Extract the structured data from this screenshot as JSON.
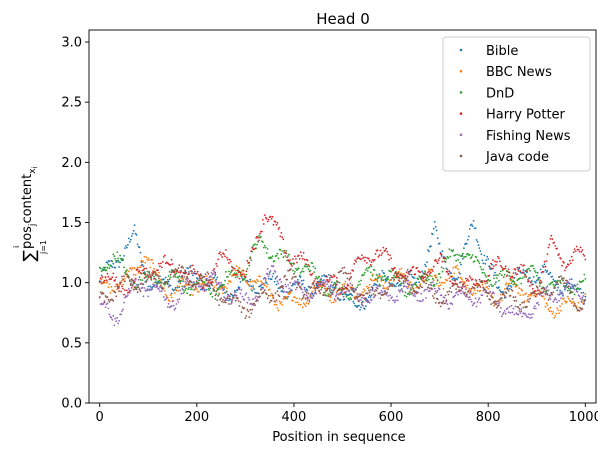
{
  "chart_data": {
    "type": "scatter",
    "title": "Head 0",
    "xlabel": "Position in sequence",
    "ylabel_tex": "sum_{j=1}^{i} pos_j content_{x_i}",
    "xlim": [
      -22,
      1022
    ],
    "ylim": [
      0.0,
      3.1
    ],
    "xticks": [
      0,
      200,
      400,
      600,
      800,
      1000
    ],
    "yticks": [
      0.0,
      0.5,
      1.0,
      1.5,
      2.0,
      2.5,
      3.0
    ],
    "xtick_labels": [
      "0",
      "200",
      "400",
      "600",
      "800",
      "1000"
    ],
    "ytick_labels": [
      "0.0",
      "0.5",
      "1.0",
      "1.5",
      "2.0",
      "2.5",
      "3.0"
    ],
    "grid": false,
    "legend_position": "top-right",
    "series": [
      {
        "name": "Bible",
        "color": "#1f77b4",
        "profile": [
          [
            0,
            1.0
          ],
          [
            30,
            1.12
          ],
          [
            60,
            1.3
          ],
          [
            72,
            1.38
          ],
          [
            100,
            1.05
          ],
          [
            150,
            0.98
          ],
          [
            200,
            1.02
          ],
          [
            300,
            0.95
          ],
          [
            400,
            1.0
          ],
          [
            500,
            0.92
          ],
          [
            530,
            0.8
          ],
          [
            560,
            1.0
          ],
          [
            650,
            0.98
          ],
          [
            690,
            1.45
          ],
          [
            700,
            1.3
          ],
          [
            740,
            1.0
          ],
          [
            770,
            1.52
          ],
          [
            790,
            1.2
          ],
          [
            820,
            1.0
          ],
          [
            880,
            1.05
          ],
          [
            950,
            1.0
          ],
          [
            1000,
            0.95
          ]
        ]
      },
      {
        "name": "BBC News",
        "color": "#ff7f0e",
        "profile": [
          [
            0,
            0.95
          ],
          [
            50,
            0.98
          ],
          [
            90,
            1.28
          ],
          [
            110,
            1.1
          ],
          [
            150,
            0.85
          ],
          [
            200,
            1.0
          ],
          [
            300,
            1.02
          ],
          [
            400,
            0.85
          ],
          [
            460,
            0.9
          ],
          [
            500,
            0.95
          ],
          [
            600,
            1.0
          ],
          [
            680,
            1.05
          ],
          [
            750,
            1.0
          ],
          [
            800,
            0.92
          ],
          [
            850,
            0.95
          ],
          [
            900,
            0.85
          ],
          [
            950,
            0.82
          ],
          [
            1000,
            0.88
          ]
        ]
      },
      {
        "name": "DnD",
        "color": "#2ca02c",
        "profile": [
          [
            0,
            1.1
          ],
          [
            30,
            1.2
          ],
          [
            80,
            1.05
          ],
          [
            150,
            0.98
          ],
          [
            200,
            1.02
          ],
          [
            250,
            0.95
          ],
          [
            300,
            1.1
          ],
          [
            335,
            1.38
          ],
          [
            380,
            1.2
          ],
          [
            430,
            1.05
          ],
          [
            500,
            0.95
          ],
          [
            560,
            1.05
          ],
          [
            620,
            1.0
          ],
          [
            700,
            1.05
          ],
          [
            750,
            1.28
          ],
          [
            780,
            1.15
          ],
          [
            830,
            1.0
          ],
          [
            900,
            1.05
          ],
          [
            950,
            1.0
          ],
          [
            1000,
            0.95
          ]
        ]
      },
      {
        "name": "Harry Potter",
        "color": "#d62728",
        "profile": [
          [
            0,
            1.05
          ],
          [
            60,
            1.0
          ],
          [
            120,
            1.1
          ],
          [
            170,
            1.15
          ],
          [
            220,
            1.0
          ],
          [
            260,
            1.18
          ],
          [
            300,
            1.05
          ],
          [
            340,
            1.65
          ],
          [
            360,
            1.45
          ],
          [
            390,
            1.2
          ],
          [
            450,
            1.05
          ],
          [
            500,
            1.0
          ],
          [
            570,
            1.25
          ],
          [
            610,
            1.15
          ],
          [
            650,
            1.05
          ],
          [
            700,
            1.12
          ],
          [
            750,
            1.0
          ],
          [
            800,
            1.08
          ],
          [
            850,
            1.1
          ],
          [
            900,
            1.0
          ],
          [
            930,
            1.32
          ],
          [
            960,
            1.15
          ],
          [
            990,
            1.2
          ]
        ]
      },
      {
        "name": "Fishing News",
        "color": "#9467bd",
        "profile": [
          [
            0,
            0.85
          ],
          [
            30,
            0.75
          ],
          [
            80,
            0.95
          ],
          [
            140,
            0.88
          ],
          [
            200,
            1.0
          ],
          [
            260,
            0.92
          ],
          [
            300,
            0.88
          ],
          [
            360,
            1.05
          ],
          [
            400,
            0.9
          ],
          [
            460,
            1.0
          ],
          [
            530,
            0.85
          ],
          [
            600,
            0.95
          ],
          [
            680,
            0.88
          ],
          [
            760,
            0.92
          ],
          [
            860,
            0.72
          ],
          [
            900,
            0.85
          ],
          [
            950,
            0.9
          ],
          [
            1000,
            0.92
          ]
        ]
      },
      {
        "name": "Java code",
        "color": "#8c564b",
        "profile": [
          [
            0,
            0.9
          ],
          [
            50,
            0.95
          ],
          [
            100,
            1.0
          ],
          [
            150,
            1.1
          ],
          [
            200,
            1.0
          ],
          [
            260,
            0.88
          ],
          [
            300,
            0.82
          ],
          [
            350,
            0.85
          ],
          [
            400,
            1.05
          ],
          [
            450,
            0.92
          ],
          [
            500,
            1.0
          ],
          [
            550,
            0.88
          ],
          [
            600,
            1.02
          ],
          [
            650,
            0.95
          ],
          [
            700,
            0.92
          ],
          [
            750,
            0.98
          ],
          [
            800,
            0.85
          ],
          [
            850,
            0.9
          ],
          [
            900,
            0.88
          ],
          [
            950,
            0.95
          ],
          [
            1000,
            0.85
          ]
        ]
      }
    ]
  }
}
